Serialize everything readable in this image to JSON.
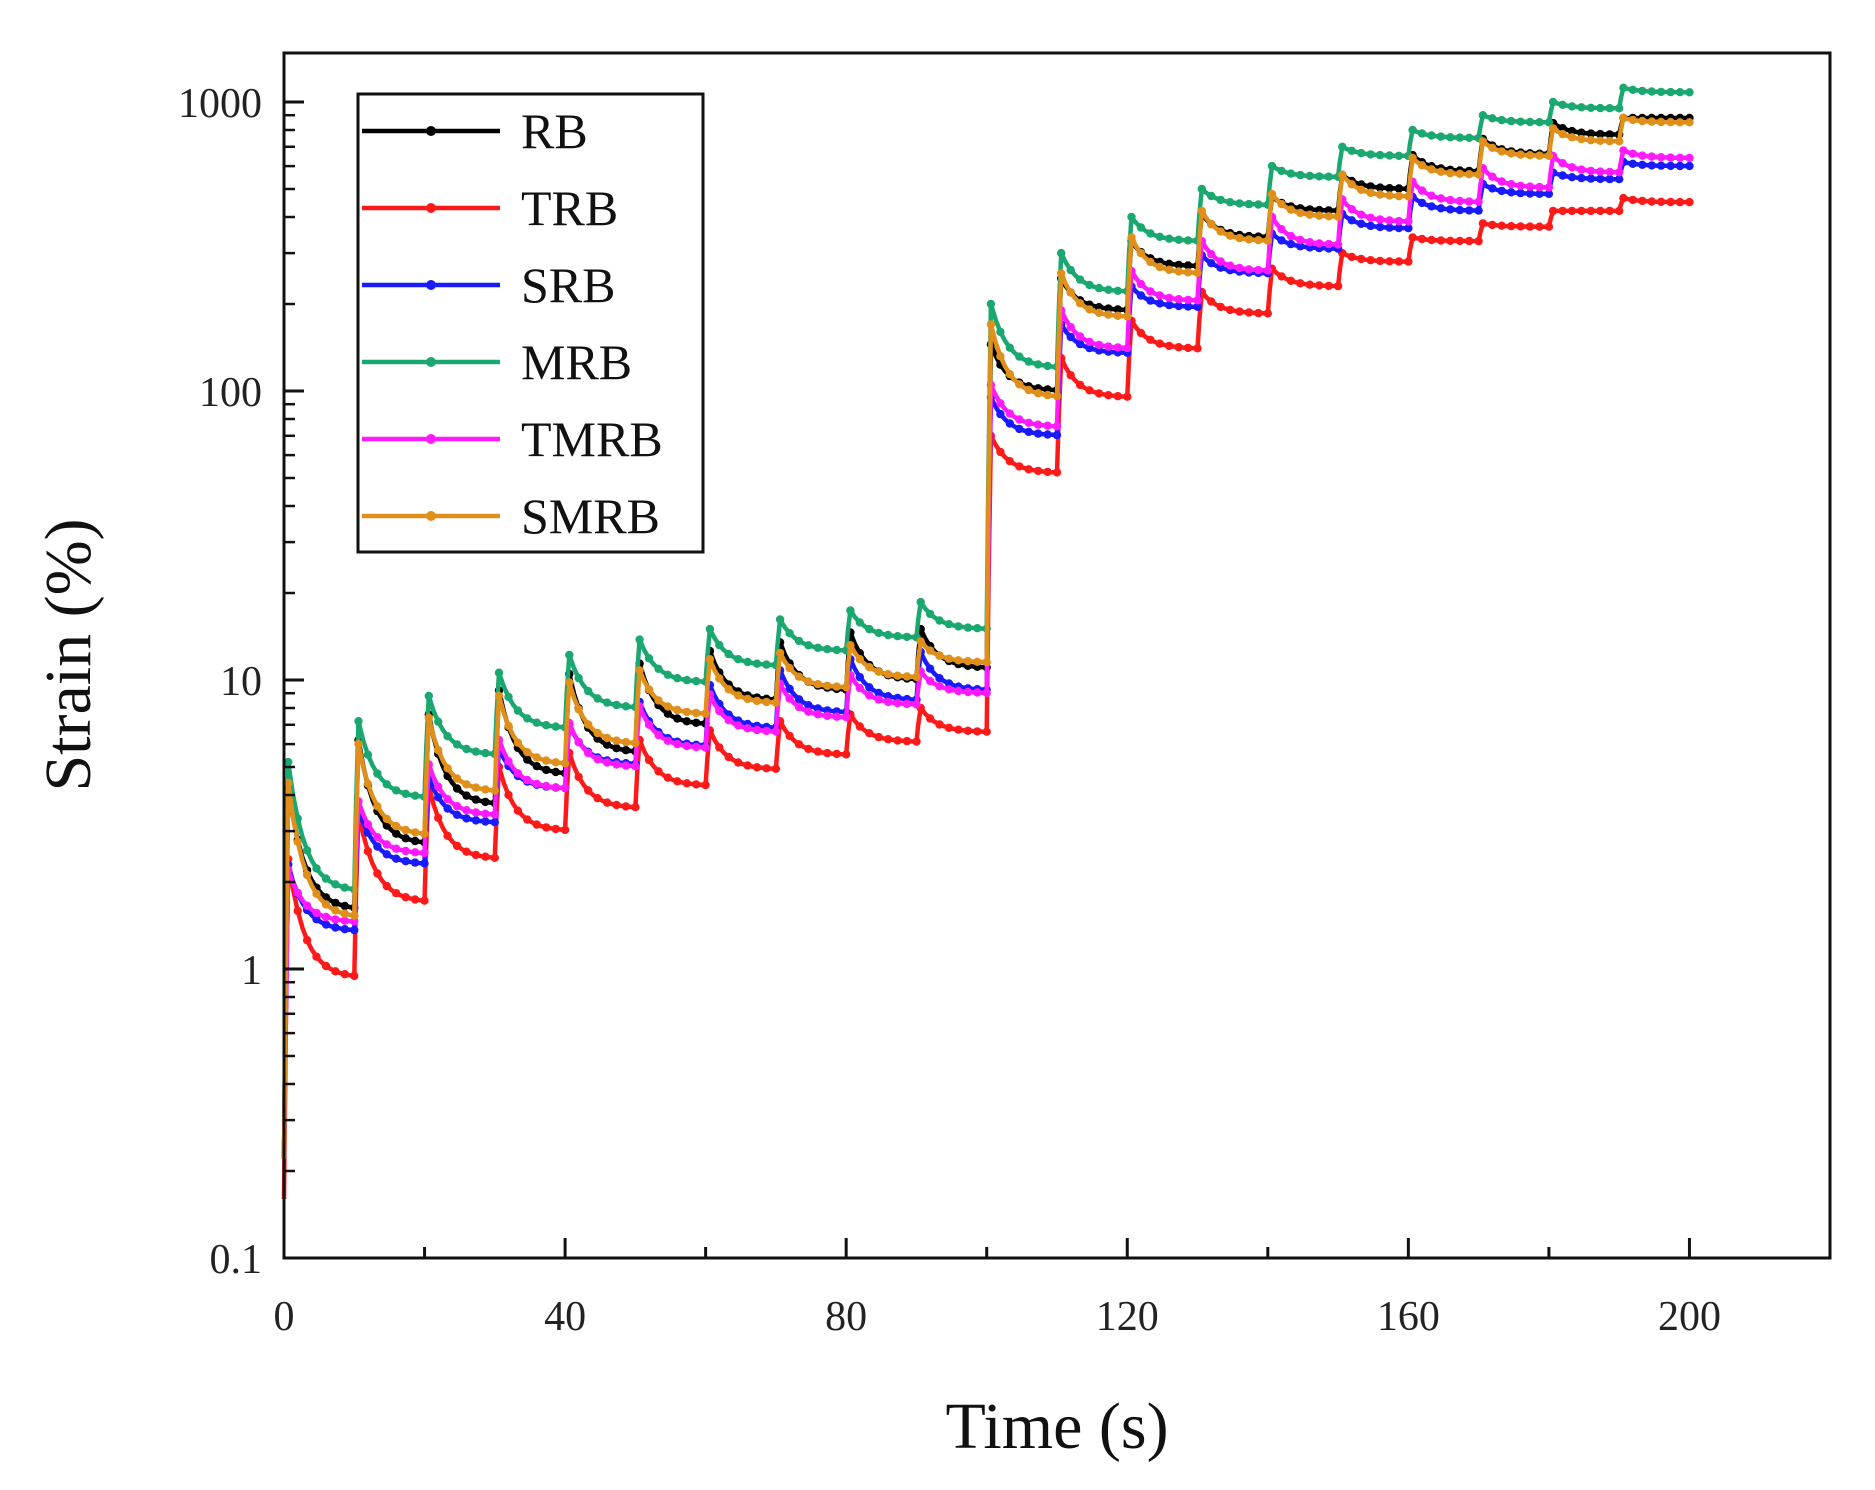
{
  "chart_data": {
    "type": "line",
    "title": "",
    "xlabel": "Time (s)",
    "ylabel": "Strain (%)",
    "yscale": "log",
    "xlim": [
      0,
      220
    ],
    "ylim": [
      0.1,
      1500
    ],
    "xticks": [
      0,
      40,
      80,
      120,
      160,
      200
    ],
    "xtick_labels": [
      "0",
      "40",
      "80",
      "120",
      "160",
      "200"
    ],
    "yticks": [
      0.1,
      1,
      10,
      100,
      1000
    ],
    "ytick_labels": [
      "0.1",
      "1",
      "10",
      "100",
      "1000"
    ],
    "grid": false,
    "legend": "top-left",
    "step_period_s": 10,
    "series": [
      {
        "name": "RB",
        "color": "#000000",
        "peaks": [
          4.3,
          6.2,
          7.6,
          9.2,
          10.5,
          11.4,
          12.6,
          13.5,
          14.6,
          15.0,
          145,
          245,
          330,
          410,
          470,
          560,
          655,
          745,
          845,
          880
        ],
        "troughs": [
          1.6,
          2.7,
          3.7,
          4.7,
          5.6,
          7.0,
          8.5,
          9.2,
          10.0,
          11.0,
          100,
          190,
          270,
          340,
          420,
          500,
          575,
          660,
          770,
          880
        ]
      },
      {
        "name": "TRB",
        "color": "#ff1a1a",
        "peaks": [
          2.4,
          3.5,
          4.3,
          5.0,
          5.6,
          6.2,
          6.7,
          7.2,
          7.6,
          8.0,
          70,
          130,
          175,
          220,
          265,
          300,
          340,
          380,
          420,
          465
        ],
        "troughs": [
          0.93,
          1.7,
          2.4,
          3.0,
          3.6,
          4.3,
          4.9,
          5.5,
          6.1,
          6.6,
          52,
          95,
          140,
          185,
          230,
          280,
          330,
          370,
          420,
          450
        ]
      },
      {
        "name": "SRB",
        "color": "#1a1aff",
        "peaks": [
          2.3,
          3.6,
          4.6,
          5.8,
          7.0,
          8.4,
          9.6,
          10.8,
          11.8,
          12.5,
          95,
          170,
          230,
          295,
          350,
          410,
          470,
          520,
          570,
          620
        ],
        "troughs": [
          1.35,
          2.3,
          3.2,
          4.2,
          5.1,
          5.9,
          6.8,
          7.7,
          8.5,
          9.2,
          70,
          135,
          195,
          255,
          310,
          365,
          420,
          480,
          540,
          600
        ]
      },
      {
        "name": "MRB",
        "color": "#1aa870",
        "peaks": [
          5.2,
          7.2,
          8.8,
          10.6,
          12.2,
          13.8,
          15.0,
          16.2,
          17.4,
          18.6,
          200,
          300,
          400,
          500,
          600,
          700,
          800,
          900,
          1000,
          1120
        ],
        "troughs": [
          1.85,
          3.9,
          5.5,
          6.8,
          8.0,
          9.8,
          11.2,
          12.6,
          14.0,
          15.0,
          120,
          220,
          330,
          440,
          550,
          650,
          750,
          850,
          950,
          1080
        ]
      },
      {
        "name": "TMRB",
        "color": "#ff1aff",
        "peaks": [
          2.2,
          3.8,
          5.1,
          6.2,
          7.1,
          8.1,
          8.9,
          9.7,
          10.4,
          10.7,
          105,
          190,
          260,
          330,
          400,
          460,
          530,
          590,
          650,
          680
        ],
        "troughs": [
          1.45,
          2.5,
          3.4,
          4.2,
          5.0,
          5.8,
          6.6,
          7.4,
          8.2,
          9.0,
          75,
          140,
          205,
          260,
          320,
          385,
          450,
          505,
          570,
          640
        ]
      },
      {
        "name": "SMRB",
        "color": "#e0901a",
        "peaks": [
          4.4,
          6.0,
          7.4,
          8.8,
          9.8,
          10.8,
          11.8,
          12.4,
          13.2,
          13.6,
          170,
          255,
          340,
          420,
          480,
          560,
          640,
          730,
          810,
          880
        ],
        "troughs": [
          1.5,
          2.9,
          4.1,
          5.1,
          6.0,
          7.6,
          8.3,
          9.4,
          10.2,
          11.5,
          95,
          180,
          255,
          330,
          400,
          470,
          560,
          650,
          730,
          850
        ]
      }
    ]
  }
}
